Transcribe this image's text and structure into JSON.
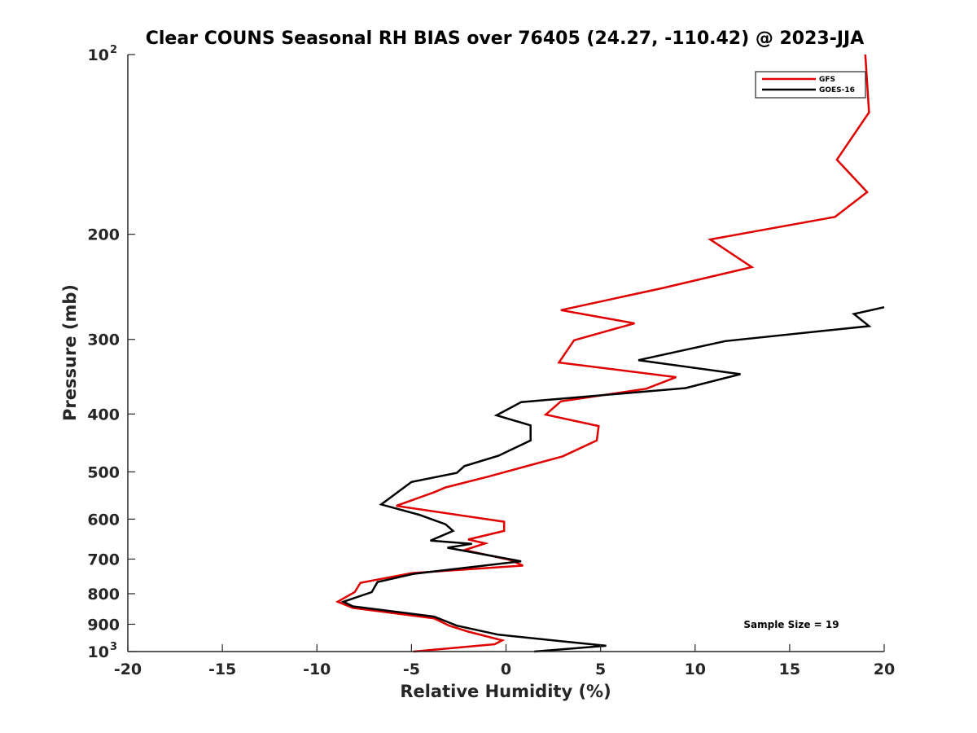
{
  "chart_data": {
    "type": "line",
    "title": "Clear COUNS Seasonal RH BIAS over 76405 (24.27, -110.42) @ 2023-JJA",
    "xlabel": "Relative Humidity (%)",
    "ylabel": "Pressure (mb)",
    "xlim": [
      -20,
      20
    ],
    "ylim": [
      100,
      1000
    ],
    "y_scale": "log",
    "y_reversed": true,
    "x_ticks": [
      -20,
      -15,
      -10,
      -5,
      0,
      5,
      10,
      15,
      20
    ],
    "x_tick_labels": [
      "-20",
      "-15",
      "-10",
      "-5",
      "0",
      "5",
      "10",
      "15",
      "20"
    ],
    "y_ticks": [
      100,
      200,
      300,
      400,
      500,
      600,
      700,
      800,
      900,
      1000
    ],
    "y_tick_labels": [
      {
        "base": "10",
        "exp": "2"
      },
      {
        "base": "200",
        "exp": ""
      },
      {
        "base": "300",
        "exp": ""
      },
      {
        "base": "400",
        "exp": ""
      },
      {
        "base": "500",
        "exp": ""
      },
      {
        "base": "600",
        "exp": ""
      },
      {
        "base": "700",
        "exp": ""
      },
      {
        "base": "800",
        "exp": ""
      },
      {
        "base": "900",
        "exp": ""
      },
      {
        "base": "10",
        "exp": "3"
      }
    ],
    "grid": false,
    "legend_position": "top-right",
    "annotation": "Sample Size = 19",
    "series": [
      {
        "name": "GFS",
        "color": "#e00000",
        "points": [
          [
            19.0,
            100
          ],
          [
            19.2,
            125
          ],
          [
            17.5,
            150
          ],
          [
            19.1,
            170
          ],
          [
            17.4,
            187
          ],
          [
            10.8,
            204
          ],
          [
            13.0,
            227
          ],
          [
            8.3,
            246
          ],
          [
            2.9,
            268
          ],
          [
            6.8,
            282
          ],
          [
            3.6,
            301
          ],
          [
            2.8,
            328
          ],
          [
            9.0,
            347
          ],
          [
            7.4,
            363
          ],
          [
            2.9,
            381
          ],
          [
            2.1,
            401
          ],
          [
            4.9,
            419
          ],
          [
            4.8,
            443
          ],
          [
            3.0,
            471
          ],
          [
            -1.0,
            510
          ],
          [
            -3.2,
            531
          ],
          [
            -3.8,
            541
          ],
          [
            -5.8,
            570
          ],
          [
            -0.1,
            606
          ],
          [
            -0.1,
            628
          ],
          [
            -2.0,
            649
          ],
          [
            -1.1,
            659
          ],
          [
            -2.2,
            676
          ],
          [
            0.2,
            702
          ],
          [
            0.9,
            718
          ],
          [
            -5.0,
            739
          ],
          [
            -7.7,
            767
          ],
          [
            -8.0,
            795
          ],
          [
            -8.9,
            825
          ],
          [
            -8.1,
            845
          ],
          [
            -3.8,
            880
          ],
          [
            -3.0,
            905
          ],
          [
            -2.0,
            926
          ],
          [
            -0.2,
            958
          ],
          [
            -0.6,
            972
          ],
          [
            -4.9,
            1000
          ]
        ]
      },
      {
        "name": "GOES-16",
        "color": "#000000",
        "points": [
          [
            20.0,
            265
          ],
          [
            18.4,
            272
          ],
          [
            19.2,
            285
          ],
          [
            11.6,
            302
          ],
          [
            7.0,
            325
          ],
          [
            12.4,
            343
          ],
          [
            9.5,
            362
          ],
          [
            0.8,
            382
          ],
          [
            -0.5,
            402
          ],
          [
            1.3,
            418
          ],
          [
            1.3,
            443
          ],
          [
            -0.4,
            470
          ],
          [
            -2.2,
            489
          ],
          [
            -2.6,
            502
          ],
          [
            -5.0,
            520
          ],
          [
            -6.6,
            567
          ],
          [
            -4.6,
            590
          ],
          [
            -3.2,
            612
          ],
          [
            -2.8,
            628
          ],
          [
            -4.0,
            652
          ],
          [
            -1.8,
            660
          ],
          [
            -3.1,
            670
          ],
          [
            0.8,
            706
          ],
          [
            -4.9,
            741
          ],
          [
            -6.8,
            765
          ],
          [
            -7.1,
            795
          ],
          [
            -8.6,
            825
          ],
          [
            -8.1,
            840
          ],
          [
            -3.8,
            874
          ],
          [
            -2.6,
            905
          ],
          [
            -0.4,
            937
          ],
          [
            2.9,
            961
          ],
          [
            5.3,
            978
          ],
          [
            1.5,
            1000
          ]
        ]
      }
    ]
  }
}
